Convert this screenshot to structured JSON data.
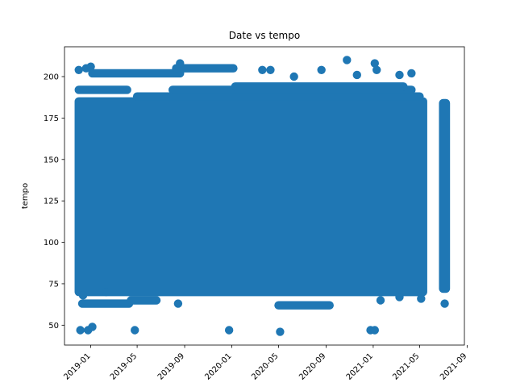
{
  "chart_data": {
    "type": "scatter",
    "title": "Date vs tempo",
    "xlabel": "",
    "ylabel": "tempo",
    "xlim": [
      "2018-10-25",
      "2021-08-25"
    ],
    "ylim": [
      38,
      218
    ],
    "color": "#1f77b4",
    "grid": false,
    "legend": "none",
    "x_ticks": [
      "2019-01",
      "2019-05",
      "2019-09",
      "2020-01",
      "2020-05",
      "2020-09",
      "2021-01",
      "2021-05",
      "2021-09"
    ],
    "y_ticks": [
      50,
      75,
      100,
      125,
      150,
      175,
      200
    ],
    "dense_band": {
      "x_range": [
        "2018-12-01",
        "2021-05-10"
      ],
      "y_range": [
        70,
        185
      ]
    },
    "late_cluster": {
      "x_range": [
        "2021-07-01",
        "2021-07-08"
      ],
      "y_range": [
        72,
        184
      ]
    },
    "rows": [
      {
        "x_range": [
          "2018-12-01",
          "2019-04-05"
        ],
        "y": 192
      },
      {
        "x_range": [
          "2019-01-05",
          "2019-08-20"
        ],
        "y": 202
      },
      {
        "x_range": [
          "2019-08-10",
          "2020-01-05"
        ],
        "y": 205
      },
      {
        "x_range": [
          "2019-05-01",
          "2021-05-01"
        ],
        "y": 188
      },
      {
        "x_range": [
          "2019-08-01",
          "2021-04-10"
        ],
        "y": 192
      },
      {
        "x_range": [
          "2020-01-10",
          "2021-03-20"
        ],
        "y": 194
      },
      {
        "x_range": [
          "2018-12-10",
          "2019-04-10"
        ],
        "y": 63
      },
      {
        "x_range": [
          "2019-04-15",
          "2019-06-20"
        ],
        "y": 65
      },
      {
        "x_range": [
          "2020-05-01",
          "2020-09-10"
        ],
        "y": 62
      }
    ],
    "points": [
      {
        "x": "2018-12-01",
        "y": 204
      },
      {
        "x": "2018-12-20",
        "y": 205
      },
      {
        "x": "2019-01-01",
        "y": 206
      },
      {
        "x": "2018-12-05",
        "y": 47
      },
      {
        "x": "2018-12-25",
        "y": 47
      },
      {
        "x": "2019-01-05",
        "y": 49
      },
      {
        "x": "2019-04-25",
        "y": 47
      },
      {
        "x": "2019-08-20",
        "y": 208
      },
      {
        "x": "2019-08-15",
        "y": 63
      },
      {
        "x": "2019-12-25",
        "y": 47
      },
      {
        "x": "2020-05-05",
        "y": 46
      },
      {
        "x": "2020-03-20",
        "y": 204
      },
      {
        "x": "2020-04-10",
        "y": 204
      },
      {
        "x": "2020-06-10",
        "y": 200
      },
      {
        "x": "2020-08-20",
        "y": 204
      },
      {
        "x": "2020-10-25",
        "y": 210
      },
      {
        "x": "2020-11-20",
        "y": 201
      },
      {
        "x": "2020-12-25",
        "y": 47
      },
      {
        "x": "2021-01-05",
        "y": 47
      },
      {
        "x": "2021-01-05",
        "y": 208
      },
      {
        "x": "2021-01-10",
        "y": 204
      },
      {
        "x": "2021-03-10",
        "y": 201
      },
      {
        "x": "2021-04-10",
        "y": 202
      },
      {
        "x": "2021-03-10",
        "y": 67
      },
      {
        "x": "2021-05-05",
        "y": 66
      },
      {
        "x": "2021-01-20",
        "y": 65
      },
      {
        "x": "2021-07-05",
        "y": 63
      },
      {
        "x": "2018-12-12",
        "y": 68
      },
      {
        "x": "2019-02-10",
        "y": 70
      }
    ]
  }
}
